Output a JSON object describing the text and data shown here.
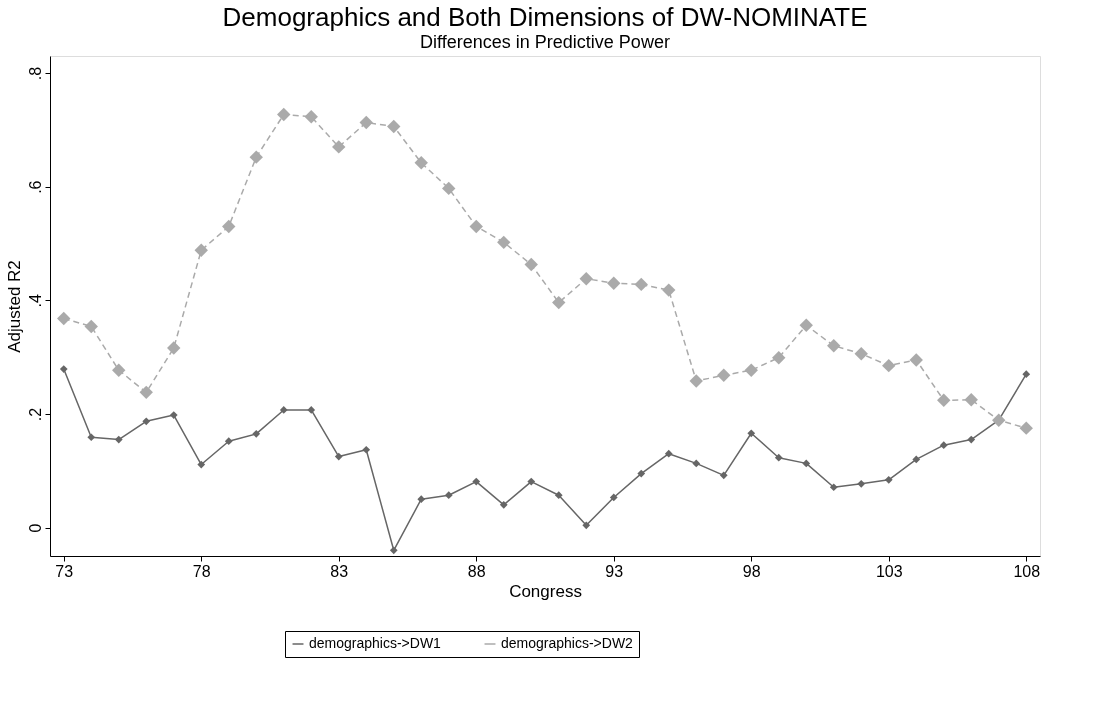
{
  "chart_data": {
    "type": "line",
    "title": "Demographics and Both Dimensions of DW-NOMINATE",
    "subtitle": "Differences in Predictive Power",
    "xlabel": "Congress",
    "ylabel": "Adjusted R2",
    "x": [
      73,
      74,
      75,
      76,
      77,
      78,
      79,
      80,
      81,
      82,
      83,
      84,
      85,
      86,
      87,
      88,
      89,
      90,
      91,
      92,
      93,
      94,
      95,
      96,
      97,
      98,
      99,
      100,
      101,
      102,
      103,
      104,
      105,
      106,
      107,
      108
    ],
    "series": [
      {
        "name": "demographics->DW1",
        "color": "#666666",
        "line_style": "solid",
        "values": [
          0.279,
          0.159,
          0.155,
          0.187,
          0.198,
          0.111,
          0.152,
          0.165,
          0.207,
          0.207,
          0.125,
          0.137,
          -0.04,
          0.05,
          0.057,
          0.081,
          0.04,
          0.081,
          0.057,
          0.004,
          0.053,
          0.095,
          0.13,
          0.113,
          0.092,
          0.166,
          0.123,
          0.113,
          0.071,
          0.077,
          0.084,
          0.12,
          0.145,
          0.155,
          0.189,
          0.27
        ]
      },
      {
        "name": "demographics->DW2",
        "color": "#aaaaaa",
        "line_style": "dashed",
        "values": [
          0.368,
          0.354,
          0.277,
          0.238,
          0.316,
          0.488,
          0.53,
          0.652,
          0.727,
          0.723,
          0.67,
          0.713,
          0.706,
          0.642,
          0.597,
          0.53,
          0.502,
          0.463,
          0.396,
          0.438,
          0.43,
          0.428,
          0.418,
          0.258,
          0.268,
          0.277,
          0.299,
          0.356,
          0.32,
          0.306,
          0.285,
          0.295,
          0.224,
          0.225,
          0.189,
          0.175
        ]
      }
    ],
    "xlim": [
      72.5,
      108.5
    ],
    "xticks": [
      73,
      78,
      83,
      88,
      93,
      98,
      103,
      108
    ],
    "ylim": [
      -0.05,
      0.83
    ],
    "yticks": [
      {
        "value": 0,
        "label": "0"
      },
      {
        "value": 0.2,
        "label": ".2"
      },
      {
        "value": 0.4,
        "label": ".4"
      },
      {
        "value": 0.6,
        "label": ".6"
      },
      {
        "value": 0.8,
        "label": ".8"
      }
    ],
    "marker": "diamond",
    "grid": false,
    "legend": "bottom"
  }
}
